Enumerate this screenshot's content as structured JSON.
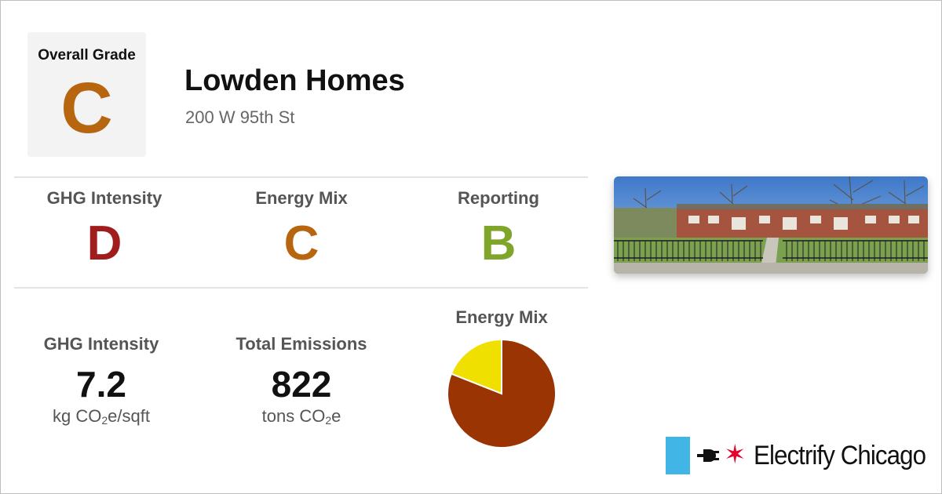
{
  "overall": {
    "label": "Overall Grade",
    "letter": "C",
    "color": "#b8650f"
  },
  "building": {
    "name": "Lowden Homes",
    "address": "200 W 95th St",
    "photo_icon": "building-photo"
  },
  "grades": [
    {
      "label": "GHG Intensity",
      "letter": "D",
      "color": "#a11d1d"
    },
    {
      "label": "Energy Mix",
      "letter": "C",
      "color": "#b8650f"
    },
    {
      "label": "Reporting",
      "letter": "B",
      "color": "#7fa62a"
    }
  ],
  "stats": {
    "ghg_intensity": {
      "label": "GHG Intensity",
      "value": "7.2",
      "unit_pre": "kg CO",
      "unit_sub": "2",
      "unit_post": "e/sqft"
    },
    "total_emissions": {
      "label": "Total Emissions",
      "value": "822",
      "unit_pre": "tons CO",
      "unit_sub": "2",
      "unit_post": "e"
    }
  },
  "energy_mix_chart": {
    "title": "Energy Mix",
    "chart_data": {
      "type": "pie",
      "slices": [
        {
          "value": 0.81,
          "color": "#9b3403"
        },
        {
          "value": 0.19,
          "color": "#f0e000"
        }
      ]
    }
  },
  "logo": {
    "text": "Electrify Chicago",
    "bar_color": "#41b6e6",
    "star_color": "#e4002b",
    "star_glyph": "✶"
  }
}
